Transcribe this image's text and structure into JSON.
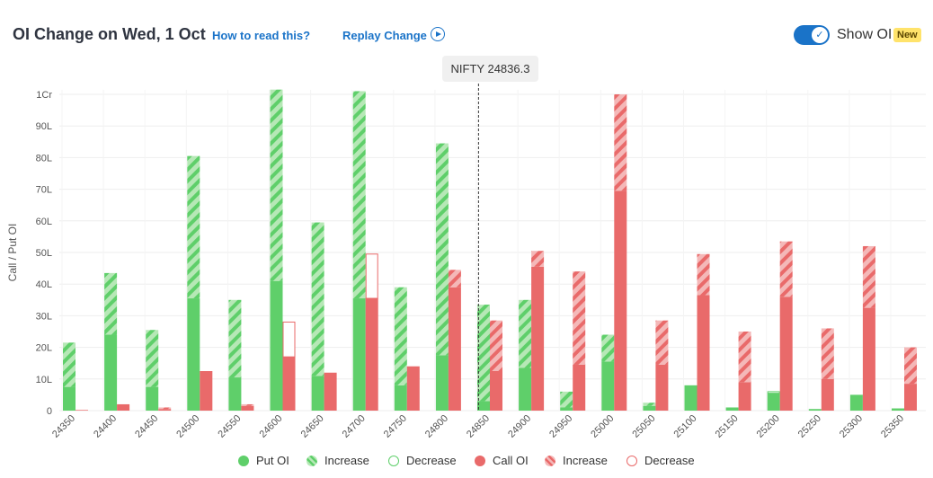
{
  "header": {
    "title": "OI Change on Wed, 1 Oct",
    "how_to_read": "How to read this?",
    "replay": "Replay Change",
    "show_oi": "Show OI",
    "badge": "New"
  },
  "spot": {
    "label": "NIFTY 24836.3",
    "value": 24836.3
  },
  "colors": {
    "put": "#5fcf6a",
    "put_increase_light": "#b6e8b6",
    "call": "#e96a6a",
    "call_increase_light": "#f4b8b8",
    "accent": "#1a73c8",
    "grid": "#eeeeee"
  },
  "legend": [
    {
      "label": "Put OI",
      "kind": "put-oi"
    },
    {
      "label": "Increase",
      "kind": "put-increase"
    },
    {
      "label": "Decrease",
      "kind": "put-decrease"
    },
    {
      "label": "Call OI",
      "kind": "call-oi"
    },
    {
      "label": "Increase",
      "kind": "call-increase"
    },
    {
      "label": "Decrease",
      "kind": "call-decrease"
    }
  ],
  "chart_data": {
    "type": "bar",
    "ylabel": "Call / Put OI",
    "ylim": [
      0,
      100
    ],
    "y_ticks": [
      "0",
      "10L",
      "20L",
      "30L",
      "40L",
      "50L",
      "60L",
      "70L",
      "80L",
      "90L",
      "1Cr"
    ],
    "grid": true,
    "legend_position": "bottom",
    "categories": [
      "24350",
      "24400",
      "24450",
      "24500",
      "24550",
      "24600",
      "24650",
      "24700",
      "24750",
      "24800",
      "24850",
      "24900",
      "24950",
      "25000",
      "25050",
      "25100",
      "25150",
      "25200",
      "25250",
      "25300",
      "25350"
    ],
    "series": [
      {
        "name": "Put OI",
        "values": [
          7.5,
          24,
          7.5,
          35.5,
          10.5,
          41,
          11,
          35.5,
          8,
          17.5,
          3,
          13.5,
          1,
          15.5,
          1.5,
          8,
          1,
          5.5,
          0.5,
          5,
          0.7
        ]
      },
      {
        "name": "Put OI Increase",
        "values": [
          14,
          19.5,
          18,
          45,
          24.5,
          60.5,
          48.5,
          65.5,
          31,
          67,
          30.5,
          21.5,
          5,
          8.5,
          1,
          0,
          0,
          0,
          0,
          0,
          0
        ]
      },
      {
        "name": "Put OI Decrease",
        "values": [
          0,
          0,
          0,
          0,
          0,
          0,
          0,
          0,
          0,
          0,
          0,
          0,
          0,
          0,
          0,
          0,
          0,
          0.5,
          0,
          0,
          0
        ]
      },
      {
        "name": "Call OI",
        "values": [
          0.2,
          2,
          0.5,
          12.5,
          1.5,
          17,
          12,
          35.5,
          14,
          39,
          12.5,
          45.5,
          14.5,
          69.5,
          14.5,
          36.5,
          9,
          36,
          10,
          32.5,
          8.5
        ]
      },
      {
        "name": "Call OI Increase",
        "values": [
          0,
          0,
          0.5,
          0,
          0.5,
          0,
          0,
          0,
          0,
          5.5,
          16,
          5,
          29.5,
          30.5,
          14,
          13,
          16,
          17.5,
          16,
          19.5,
          11.5
        ]
      },
      {
        "name": "Call OI Decrease",
        "values": [
          0,
          0,
          0,
          0,
          0,
          11,
          0,
          14,
          0,
          0,
          0,
          0,
          0,
          0,
          0,
          0,
          0,
          0,
          0,
          0,
          0
        ]
      }
    ]
  }
}
